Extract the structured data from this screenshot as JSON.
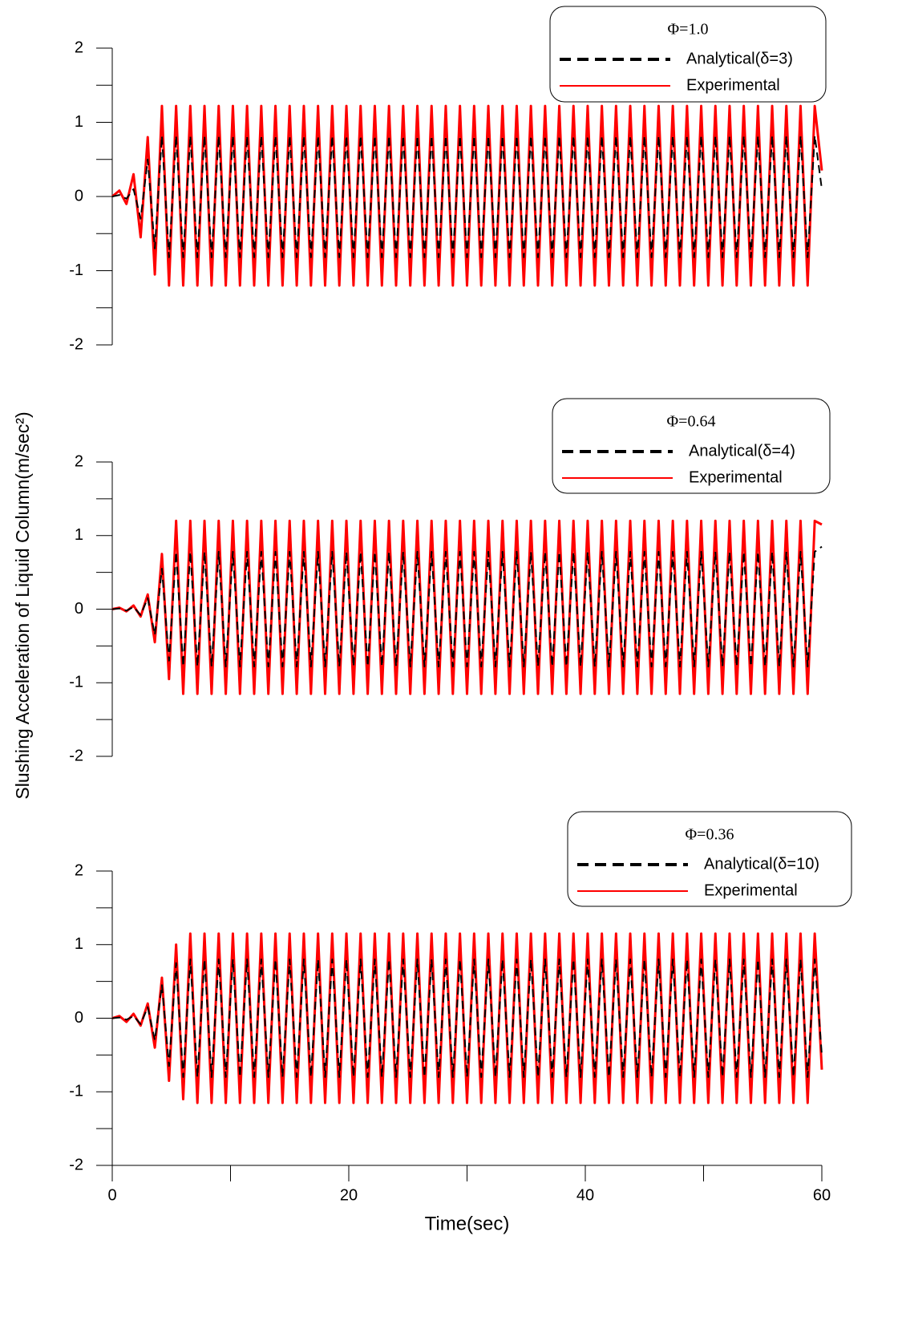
{
  "chart_data": [
    {
      "type": "line",
      "legend_title": "Φ=1.0",
      "legend_loc": "upper right",
      "xlim": [
        0,
        60
      ],
      "ylim": [
        -2,
        2
      ],
      "yticks": [
        -2,
        -1,
        0,
        1,
        2
      ],
      "yminor_ticks": [
        -1.5,
        -0.5,
        0.5,
        1.5
      ],
      "x": [
        0,
        0.6,
        1.2,
        1.8,
        2.4,
        3,
        3.6,
        4.2,
        4.8,
        5.4,
        6,
        6.6,
        7.2,
        7.8,
        8.4,
        9,
        9.6,
        10.2,
        10.8,
        11.4,
        12,
        12.6,
        13.2,
        13.8,
        14.4,
        15,
        15.6,
        16.2,
        16.8,
        17.4,
        18,
        18.6,
        19.2,
        19.8,
        20.4,
        21,
        21.6,
        22.2,
        22.8,
        23.4,
        24,
        24.6,
        25.2,
        25.8,
        26.4,
        27,
        27.6,
        28.2,
        28.8,
        29.4,
        30,
        30.6,
        31.2,
        31.8,
        32.4,
        33,
        33.6,
        34.2,
        34.8,
        35.4,
        36,
        36.6,
        37.2,
        37.8,
        38.4,
        39,
        39.6,
        40.2,
        40.8,
        41.4,
        42,
        42.6,
        43.2,
        43.8,
        44.4,
        45,
        45.6,
        46.2,
        46.8,
        47.4,
        48,
        48.6,
        49.2,
        49.8,
        50.4,
        51,
        51.6,
        52.2,
        52.8,
        53.4,
        54,
        54.6,
        55.2,
        55.8,
        56.4,
        57,
        57.6,
        58.2,
        58.8,
        59.4,
        60
      ],
      "series": [
        {
          "name": "Analytical(δ=3)",
          "color": "#000000",
          "linestyle": "dashed",
          "values": [
            0,
            0.02,
            -0.03,
            0.1,
            -0.3,
            0.5,
            -0.7,
            0.82,
            -0.82,
            0.82,
            -0.82,
            0.82,
            -0.82,
            0.82,
            -0.82,
            0.82,
            -0.82,
            0.82,
            -0.82,
            0.82,
            -0.82,
            0.82,
            -0.82,
            0.82,
            -0.82,
            0.82,
            -0.82,
            0.82,
            -0.82,
            0.82,
            -0.82,
            0.82,
            -0.82,
            0.82,
            -0.82,
            0.82,
            -0.82,
            0.82,
            -0.82,
            0.82,
            -0.82,
            0.82,
            -0.82,
            0.82,
            -0.82,
            0.82,
            -0.82,
            0.82,
            -0.82,
            0.82,
            -0.82,
            0.82,
            -0.82,
            0.82,
            -0.82,
            0.82,
            -0.82,
            0.82,
            -0.82,
            0.82,
            -0.82,
            0.82,
            -0.82,
            0.82,
            -0.82,
            0.82,
            -0.82,
            0.82,
            -0.82,
            0.82,
            -0.82,
            0.82,
            -0.82,
            0.82,
            -0.82,
            0.82,
            -0.82,
            0.82,
            -0.82,
            0.82,
            -0.82,
            0.82,
            -0.82,
            0.82,
            -0.82,
            0.82,
            -0.82,
            0.82,
            -0.82,
            0.82,
            -0.82,
            0.82,
            -0.82,
            0.82,
            -0.82,
            0.82,
            -0.82,
            0.82,
            -0.82,
            0.82,
            0.1
          ]
        },
        {
          "name": "Experimental",
          "color": "#ff0000",
          "linestyle": "solid",
          "values": [
            0,
            0.08,
            -0.1,
            0.3,
            -0.55,
            0.8,
            -1.05,
            1.22,
            -1.2,
            1.22,
            -1.2,
            1.22,
            -1.2,
            1.22,
            -1.2,
            1.22,
            -1.2,
            1.22,
            -1.2,
            1.22,
            -1.2,
            1.22,
            -1.2,
            1.22,
            -1.2,
            1.22,
            -1.2,
            1.22,
            -1.2,
            1.22,
            -1.2,
            1.22,
            -1.2,
            1.22,
            -1.2,
            1.22,
            -1.2,
            1.22,
            -1.2,
            1.22,
            -1.2,
            1.22,
            -1.2,
            1.22,
            -1.2,
            1.22,
            -1.2,
            1.22,
            -1.2,
            1.22,
            -1.2,
            1.22,
            -1.2,
            1.22,
            -1.2,
            1.22,
            -1.2,
            1.22,
            -1.2,
            1.22,
            -1.2,
            1.22,
            -1.2,
            1.22,
            -1.2,
            1.22,
            -1.2,
            1.22,
            -1.2,
            1.22,
            -1.2,
            1.22,
            -1.2,
            1.22,
            -1.2,
            1.22,
            -1.2,
            1.22,
            -1.2,
            1.22,
            -1.2,
            1.22,
            -1.2,
            1.22,
            -1.2,
            1.22,
            -1.2,
            1.22,
            -1.2,
            1.22,
            -1.2,
            1.22,
            -1.2,
            1.22,
            -1.2,
            1.22,
            -1.2,
            1.22,
            -1.2,
            1.22,
            0.35
          ]
        }
      ]
    },
    {
      "type": "line",
      "legend_title": "Φ=0.64",
      "legend_loc": "upper right",
      "ylabel": "Slushing Acceleration of Liquid Column(m/sec²)",
      "xlim": [
        0,
        60
      ],
      "ylim": [
        -2,
        2
      ],
      "yticks": [
        -2,
        -1,
        0,
        1,
        2
      ],
      "yminor_ticks": [
        -1.5,
        -0.5,
        0.5,
        1.5
      ],
      "x": [
        0,
        0.6,
        1.2,
        1.8,
        2.4,
        3,
        3.6,
        4.2,
        4.8,
        5.4,
        6,
        6.6,
        7.2,
        7.8,
        8.4,
        9,
        9.6,
        10.2,
        10.8,
        11.4,
        12,
        12.6,
        13.2,
        13.8,
        14.4,
        15,
        15.6,
        16.2,
        16.8,
        17.4,
        18,
        18.6,
        19.2,
        19.8,
        20.4,
        21,
        21.6,
        22.2,
        22.8,
        23.4,
        24,
        24.6,
        25.2,
        25.8,
        26.4,
        27,
        27.6,
        28.2,
        28.8,
        29.4,
        30,
        30.6,
        31.2,
        31.8,
        32.4,
        33,
        33.6,
        34.2,
        34.8,
        35.4,
        36,
        36.6,
        37.2,
        37.8,
        38.4,
        39,
        39.6,
        40.2,
        40.8,
        41.4,
        42,
        42.6,
        43.2,
        43.8,
        44.4,
        45,
        45.6,
        46.2,
        46.8,
        47.4,
        48,
        48.6,
        49.2,
        49.8,
        50.4,
        51,
        51.6,
        52.2,
        52.8,
        53.4,
        54,
        54.6,
        55.2,
        55.8,
        56.4,
        57,
        57.6,
        58.2,
        58.8,
        59.4,
        60
      ],
      "series": [
        {
          "name": "Analytical(δ=4)",
          "color": "#000000",
          "linestyle": "dashed",
          "values": [
            0,
            0.01,
            -0.02,
            0.03,
            -0.08,
            0.15,
            -0.35,
            0.55,
            -0.7,
            0.78,
            -0.78,
            0.78,
            -0.78,
            0.78,
            -0.78,
            0.78,
            -0.78,
            0.78,
            -0.78,
            0.78,
            -0.78,
            0.78,
            -0.78,
            0.78,
            -0.78,
            0.78,
            -0.78,
            0.78,
            -0.78,
            0.78,
            -0.78,
            0.78,
            -0.78,
            0.78,
            -0.78,
            0.78,
            -0.78,
            0.78,
            -0.78,
            0.78,
            -0.78,
            0.78,
            -0.78,
            0.78,
            -0.78,
            0.78,
            -0.78,
            0.78,
            -0.78,
            0.78,
            -0.78,
            0.78,
            -0.78,
            0.78,
            -0.78,
            0.78,
            -0.78,
            0.78,
            -0.78,
            0.78,
            -0.78,
            0.78,
            -0.78,
            0.78,
            -0.78,
            0.78,
            -0.78,
            0.78,
            -0.78,
            0.78,
            -0.78,
            0.78,
            -0.78,
            0.78,
            -0.78,
            0.78,
            -0.78,
            0.78,
            -0.78,
            0.78,
            -0.78,
            0.78,
            -0.78,
            0.78,
            -0.78,
            0.78,
            -0.78,
            0.78,
            -0.78,
            0.78,
            -0.78,
            0.78,
            -0.78,
            0.78,
            -0.78,
            0.78,
            -0.78,
            0.78,
            -0.78,
            0.78,
            0.85
          ]
        },
        {
          "name": "Experimental",
          "color": "#ff0000",
          "linestyle": "solid",
          "values": [
            0,
            0.02,
            -0.03,
            0.05,
            -0.1,
            0.2,
            -0.45,
            0.75,
            -0.95,
            1.2,
            -1.15,
            1.2,
            -1.15,
            1.2,
            -1.15,
            1.2,
            -1.15,
            1.2,
            -1.15,
            1.2,
            -1.15,
            1.2,
            -1.15,
            1.2,
            -1.15,
            1.2,
            -1.15,
            1.2,
            -1.15,
            1.2,
            -1.15,
            1.2,
            -1.15,
            1.2,
            -1.15,
            1.2,
            -1.15,
            1.2,
            -1.15,
            1.2,
            -1.15,
            1.2,
            -1.15,
            1.2,
            -1.15,
            1.2,
            -1.15,
            1.2,
            -1.15,
            1.2,
            -1.15,
            1.2,
            -1.15,
            1.2,
            -1.15,
            1.2,
            -1.15,
            1.2,
            -1.15,
            1.2,
            -1.15,
            1.2,
            -1.15,
            1.2,
            -1.15,
            1.2,
            -1.15,
            1.2,
            -1.15,
            1.2,
            -1.15,
            1.2,
            -1.15,
            1.2,
            -1.15,
            1.2,
            -1.15,
            1.2,
            -1.15,
            1.2,
            -1.15,
            1.2,
            -1.15,
            1.2,
            -1.15,
            1.2,
            -1.15,
            1.2,
            -1.15,
            1.2,
            -1.15,
            1.2,
            -1.15,
            1.2,
            -1.15,
            1.2,
            -1.15,
            1.2,
            -1.15,
            1.2,
            1.15
          ]
        }
      ]
    },
    {
      "type": "line",
      "legend_title": "Φ=0.36",
      "legend_loc": "upper right",
      "xlabel": "Time(sec)",
      "xlim": [
        0,
        60
      ],
      "xticks": [
        0,
        20,
        40,
        60
      ],
      "xminor_ticks": [
        10,
        30,
        50
      ],
      "ylim": [
        -2,
        2
      ],
      "yticks": [
        -2,
        -1,
        0,
        1,
        2
      ],
      "yminor_ticks": [
        -1.5,
        -0.5,
        0.5,
        1.5
      ],
      "x": [
        0,
        0.6,
        1.2,
        1.8,
        2.4,
        3,
        3.6,
        4.2,
        4.8,
        5.4,
        6,
        6.6,
        7.2,
        7.8,
        8.4,
        9,
        9.6,
        10.2,
        10.8,
        11.4,
        12,
        12.6,
        13.2,
        13.8,
        14.4,
        15,
        15.6,
        16.2,
        16.8,
        17.4,
        18,
        18.6,
        19.2,
        19.8,
        20.4,
        21,
        21.6,
        22.2,
        22.8,
        23.4,
        24,
        24.6,
        25.2,
        25.8,
        26.4,
        27,
        27.6,
        28.2,
        28.8,
        29.4,
        30,
        30.6,
        31.2,
        31.8,
        32.4,
        33,
        33.6,
        34.2,
        34.8,
        35.4,
        36,
        36.6,
        37.2,
        37.8,
        38.4,
        39,
        39.6,
        40.2,
        40.8,
        41.4,
        42,
        42.6,
        43.2,
        43.8,
        44.4,
        45,
        45.6,
        46.2,
        46.8,
        47.4,
        48,
        48.6,
        49.2,
        49.8,
        50.4,
        51,
        51.6,
        52.2,
        52.8,
        53.4,
        54,
        54.6,
        55.2,
        55.8,
        56.4,
        57,
        57.6,
        58.2,
        58.8,
        59.4,
        60
      ],
      "series": [
        {
          "name": "Analytical(δ=10)",
          "color": "#000000",
          "linestyle": "dashed",
          "values": [
            0,
            0.01,
            -0.02,
            0.03,
            -0.08,
            0.15,
            -0.3,
            0.45,
            -0.65,
            0.75,
            -0.8,
            0.8,
            -0.8,
            0.8,
            -0.8,
            0.8,
            -0.8,
            0.8,
            -0.8,
            0.8,
            -0.8,
            0.8,
            -0.8,
            0.8,
            -0.8,
            0.8,
            -0.8,
            0.8,
            -0.8,
            0.8,
            -0.8,
            0.8,
            -0.8,
            0.8,
            -0.8,
            0.8,
            -0.8,
            0.8,
            -0.8,
            0.8,
            -0.8,
            0.8,
            -0.8,
            0.8,
            -0.8,
            0.8,
            -0.8,
            0.8,
            -0.8,
            0.8,
            -0.8,
            0.8,
            -0.8,
            0.8,
            -0.8,
            0.8,
            -0.8,
            0.8,
            -0.8,
            0.8,
            -0.8,
            0.8,
            -0.8,
            0.8,
            -0.8,
            0.8,
            -0.8,
            0.8,
            -0.8,
            0.8,
            -0.8,
            0.8,
            -0.8,
            0.8,
            -0.8,
            0.8,
            -0.8,
            0.8,
            -0.8,
            0.8,
            -0.8,
            0.8,
            -0.8,
            0.8,
            -0.8,
            0.8,
            -0.8,
            0.8,
            -0.8,
            0.8,
            -0.8,
            0.8,
            -0.8,
            0.8,
            -0.8,
            0.8,
            -0.8,
            0.8,
            -0.8,
            0.8,
            -0.5
          ]
        },
        {
          "name": "Experimental",
          "color": "#ff0000",
          "linestyle": "solid",
          "values": [
            0,
            0.03,
            -0.05,
            0.06,
            -0.1,
            0.2,
            -0.4,
            0.55,
            -0.85,
            1.0,
            -1.1,
            1.15,
            -1.15,
            1.15,
            -1.15,
            1.15,
            -1.15,
            1.15,
            -1.15,
            1.15,
            -1.15,
            1.15,
            -1.15,
            1.15,
            -1.15,
            1.15,
            -1.15,
            1.15,
            -1.15,
            1.15,
            -1.15,
            1.15,
            -1.15,
            1.15,
            -1.15,
            1.15,
            -1.15,
            1.15,
            -1.15,
            1.15,
            -1.15,
            1.15,
            -1.15,
            1.15,
            -1.15,
            1.15,
            -1.15,
            1.15,
            -1.15,
            1.15,
            -1.15,
            1.15,
            -1.15,
            1.15,
            -1.15,
            1.15,
            -1.15,
            1.15,
            -1.15,
            1.15,
            -1.15,
            1.15,
            -1.15,
            1.15,
            -1.15,
            1.15,
            -1.15,
            1.15,
            -1.15,
            1.15,
            -1.15,
            1.15,
            -1.15,
            1.15,
            -1.15,
            1.15,
            -1.15,
            1.15,
            -1.15,
            1.15,
            -1.15,
            1.15,
            -1.15,
            1.15,
            -1.15,
            1.15,
            -1.15,
            1.15,
            -1.15,
            1.15,
            -1.15,
            1.15,
            -1.15,
            1.15,
            -1.15,
            1.15,
            -1.15,
            1.15,
            -1.15,
            1.15,
            -0.7
          ]
        }
      ]
    }
  ]
}
